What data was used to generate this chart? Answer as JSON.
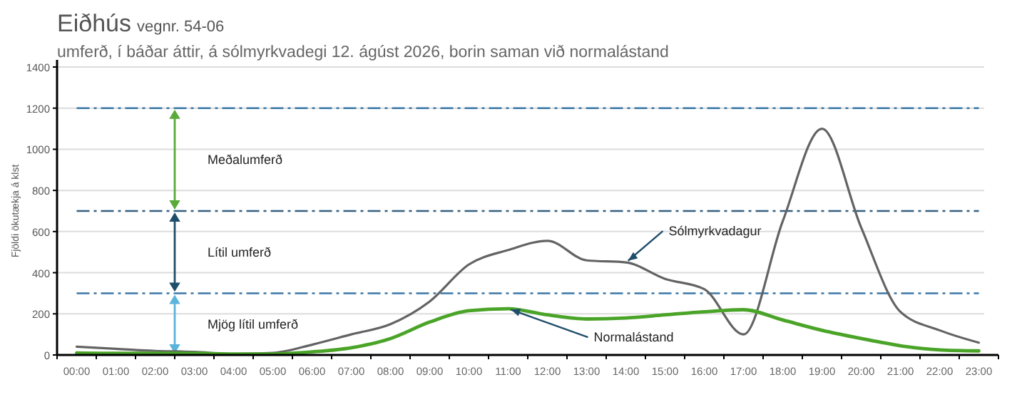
{
  "chart_data": {
    "type": "line",
    "title": "Eiðhús",
    "subtitle": "umferð, í báðar áttir, á sólmyrkvadegi 12. ágúst 2026, borin saman við normalástand",
    "annotations": [
      "vegnr. 54-06",
      "Mjög lítil umferð",
      "Lítil umferð",
      "Meðalumferð"
    ],
    "ylabel": "Fjöldi ökutækja á klst",
    "categories": [
      "00:00",
      "01:00",
      "02:00",
      "03:00",
      "04:00",
      "05:00",
      "06:00",
      "07:00",
      "08:00",
      "09:00",
      "10:00",
      "11:00",
      "12:00",
      "13:00",
      "14:00",
      "15:00",
      "16:00",
      "17:00",
      "18:00",
      "19:00",
      "20:00",
      "21:00",
      "22:00",
      "23:00"
    ],
    "series": [
      {
        "name": "Sólmyrkvadagur",
        "color": "#636363",
        "values": [
          40,
          30,
          20,
          15,
          5,
          10,
          50,
          100,
          150,
          260,
          440,
          510,
          555,
          460,
          450,
          370,
          320,
          100,
          650,
          1100,
          620,
          210,
          120,
          60
        ]
      },
      {
        "name": "Normalástand",
        "color": "#4aa428",
        "values": [
          10,
          8,
          8,
          8,
          5,
          5,
          15,
          35,
          80,
          160,
          215,
          225,
          195,
          175,
          180,
          195,
          210,
          220,
          170,
          120,
          80,
          45,
          25,
          20
        ]
      }
    ],
    "ylim": [
      0,
      1400
    ],
    "yticks": [
      0,
      200,
      400,
      600,
      800,
      1000,
      1200,
      1400
    ],
    "grid": "y",
    "line_style": "solid",
    "marker": "none",
    "ref_lines": [
      {
        "axis": "y",
        "value": 300,
        "color": "#3a78a8",
        "line_style": "dashed"
      },
      {
        "axis": "y",
        "value": 700,
        "color": "#35607f",
        "line_style": "dashed"
      },
      {
        "axis": "y",
        "value": 1200,
        "color": "#3a78a8",
        "line_style": "dashed"
      }
    ]
  }
}
